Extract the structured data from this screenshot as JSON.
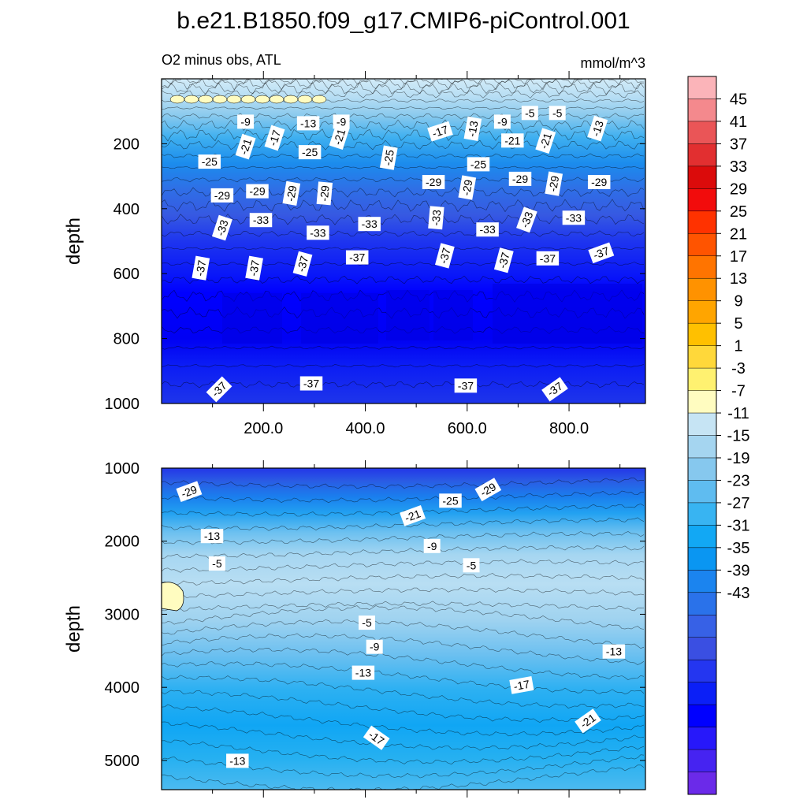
{
  "chart_data": {
    "type": "heatmap",
    "title": "b.e21.B1850.f09_g17.CMIP6-piControl.001",
    "subtitle_left": "O2 minus obs, ATL",
    "units": "mmol/m^3",
    "ylabel": "depth",
    "xlabel": "",
    "colorbar": {
      "levels": [
        45,
        41,
        37,
        33,
        29,
        25,
        21,
        17,
        13,
        9,
        5,
        1,
        -3,
        -7,
        -11,
        -15,
        -19,
        -23,
        -27,
        -31,
        -35,
        -39,
        -43
      ],
      "colors": [
        "#fbb4b9",
        "#f4898d",
        "#ea5557",
        "#e22f30",
        "#db0b0b",
        "#f20c0c",
        "#ff3200",
        "#ff5400",
        "#ff7400",
        "#ff9200",
        "#ffa500",
        "#ffc000",
        "#ffd83a",
        "#fff170",
        "#fffcc0",
        "#c6e4f4",
        "#a5d5f0",
        "#86c8ee",
        "#5fbcf0",
        "#38b4f2",
        "#12a8f4",
        "#0a96f2",
        "#1b84ef",
        "#2a72ea",
        "#3761e6",
        "#3a4fe2",
        "#2436f0",
        "#0b1ff7",
        "#0000ff",
        "#2718fa",
        "#4623f1",
        "#6b2ae9"
      ]
    },
    "panels": [
      {
        "name": "upper",
        "ylim": [
          1000,
          0
        ],
        "yticks": [
          200,
          400,
          600,
          800,
          1000
        ],
        "xlim": [
          0,
          950
        ],
        "xticks": [
          200.0,
          400.0,
          600.0,
          800.0
        ],
        "xtick_labels": [
          "200.0",
          "400.0",
          "600.0",
          "800.0"
        ],
        "contour_labels": [
          {
            "text": "-9",
            "x": 165,
            "y": 132,
            "angle": 0
          },
          {
            "text": "-13",
            "x": 288,
            "y": 137,
            "angle": 0
          },
          {
            "text": "-9",
            "x": 353,
            "y": 132,
            "angle": 0
          },
          {
            "text": "-17",
            "x": 222,
            "y": 182,
            "angle": -72
          },
          {
            "text": "-21",
            "x": 165,
            "y": 209,
            "angle": -72
          },
          {
            "text": "-25",
            "x": 94,
            "y": 255,
            "angle": 0
          },
          {
            "text": "-25",
            "x": 291,
            "y": 226,
            "angle": 0
          },
          {
            "text": "-21",
            "x": 349,
            "y": 179,
            "angle": -72
          },
          {
            "text": "-25",
            "x": 446,
            "y": 243,
            "angle": -80
          },
          {
            "text": "-17",
            "x": 547,
            "y": 162,
            "angle": -18
          },
          {
            "text": "-13",
            "x": 611,
            "y": 154,
            "angle": -80
          },
          {
            "text": "-9",
            "x": 669,
            "y": 132,
            "angle": 0
          },
          {
            "text": "-5",
            "x": 723,
            "y": 105,
            "angle": 0
          },
          {
            "text": "-5",
            "x": 777,
            "y": 105,
            "angle": 0
          },
          {
            "text": "-13",
            "x": 856,
            "y": 153,
            "angle": -72
          },
          {
            "text": "-21",
            "x": 689,
            "y": 190,
            "angle": 0
          },
          {
            "text": "-21",
            "x": 754,
            "y": 191,
            "angle": -72
          },
          {
            "text": "-25",
            "x": 622,
            "y": 263,
            "angle": 0
          },
          {
            "text": "-29",
            "x": 119,
            "y": 359,
            "angle": 0
          },
          {
            "text": "-29",
            "x": 188,
            "y": 346,
            "angle": 0
          },
          {
            "text": "-29",
            "x": 255,
            "y": 353,
            "angle": -80
          },
          {
            "text": "-29",
            "x": 320,
            "y": 353,
            "angle": -85
          },
          {
            "text": "-29",
            "x": 534,
            "y": 318,
            "angle": 0
          },
          {
            "text": "-29",
            "x": 600,
            "y": 335,
            "angle": -80
          },
          {
            "text": "-29",
            "x": 704,
            "y": 308,
            "angle": 0
          },
          {
            "text": "-29",
            "x": 770,
            "y": 323,
            "angle": -80
          },
          {
            "text": "-29",
            "x": 859,
            "y": 318,
            "angle": 0
          },
          {
            "text": "-33",
            "x": 119,
            "y": 459,
            "angle": -72
          },
          {
            "text": "-33",
            "x": 195,
            "y": 435,
            "angle": 0
          },
          {
            "text": "-33",
            "x": 307,
            "y": 474,
            "angle": 0
          },
          {
            "text": "-33",
            "x": 408,
            "y": 447,
            "angle": 0
          },
          {
            "text": "-33",
            "x": 539,
            "y": 428,
            "angle": -85
          },
          {
            "text": "-33",
            "x": 640,
            "y": 464,
            "angle": 0
          },
          {
            "text": "-33",
            "x": 717,
            "y": 434,
            "angle": -70
          },
          {
            "text": "-33",
            "x": 809,
            "y": 428,
            "angle": 0
          },
          {
            "text": "-37",
            "x": 77,
            "y": 583,
            "angle": -80
          },
          {
            "text": "-37",
            "x": 182,
            "y": 583,
            "angle": -80
          },
          {
            "text": "-37",
            "x": 277,
            "y": 570,
            "angle": -75
          },
          {
            "text": "-37",
            "x": 384,
            "y": 550,
            "angle": 0
          },
          {
            "text": "-37",
            "x": 556,
            "y": 545,
            "angle": -75
          },
          {
            "text": "-37",
            "x": 672,
            "y": 559,
            "angle": -75
          },
          {
            "text": "-37",
            "x": 758,
            "y": 553,
            "angle": 0
          },
          {
            "text": "-37",
            "x": 863,
            "y": 536,
            "angle": -20
          },
          {
            "text": "-37",
            "x": 113,
            "y": 956,
            "angle": -45
          },
          {
            "text": "-37",
            "x": 294,
            "y": 938,
            "angle": 0
          },
          {
            "text": "-37",
            "x": 597,
            "y": 945,
            "angle": 0
          },
          {
            "text": "-37",
            "x": 772,
            "y": 956,
            "angle": -35
          }
        ]
      },
      {
        "name": "lower",
        "ylim": [
          5400,
          1000
        ],
        "yticks": [
          1000,
          2000,
          3000,
          4000,
          5000
        ],
        "xlim": [
          0,
          950
        ],
        "contour_labels": [
          {
            "text": "-29",
            "x": 54,
            "y": 1320,
            "angle": -20
          },
          {
            "text": "-25",
            "x": 567,
            "y": 1445,
            "angle": 0
          },
          {
            "text": "-29",
            "x": 641,
            "y": 1293,
            "angle": -30
          },
          {
            "text": "-21",
            "x": 493,
            "y": 1650,
            "angle": -20
          },
          {
            "text": "-13",
            "x": 99,
            "y": 1930,
            "angle": 0
          },
          {
            "text": "-9",
            "x": 531,
            "y": 2065,
            "angle": 0
          },
          {
            "text": "-5",
            "x": 109,
            "y": 2305,
            "angle": 0
          },
          {
            "text": "-5",
            "x": 608,
            "y": 2330,
            "angle": 0
          },
          {
            "text": "-5",
            "x": 403,
            "y": 3115,
            "angle": 0
          },
          {
            "text": "-9",
            "x": 418,
            "y": 3445,
            "angle": 0
          },
          {
            "text": "-13",
            "x": 396,
            "y": 3800,
            "angle": 0
          },
          {
            "text": "-13",
            "x": 888,
            "y": 3510,
            "angle": 0
          },
          {
            "text": "-17",
            "x": 707,
            "y": 3970,
            "angle": -10
          },
          {
            "text": "-17",
            "x": 422,
            "y": 4690,
            "angle": 35
          },
          {
            "text": "-21",
            "x": 837,
            "y": 4460,
            "angle": -35
          },
          {
            "text": "-13",
            "x": 149,
            "y": 5005,
            "angle": 0
          }
        ]
      }
    ]
  }
}
